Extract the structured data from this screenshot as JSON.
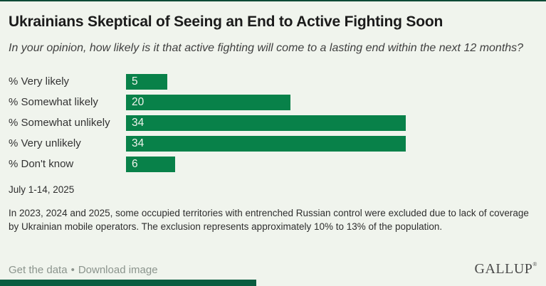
{
  "header": {
    "title": "Ukrainians Skeptical of Seeing an End to Active Fighting Soon",
    "subtitle": "In your opinion, how likely is it that active fighting will come to a lasting end within the next 12 months?"
  },
  "chart_data": {
    "type": "bar",
    "orientation": "horizontal",
    "title": "Ukrainians Skeptical of Seeing an End to Active Fighting Soon",
    "subtitle": "In your opinion, how likely is it that active fighting will come to a lasting end within the next 12 months?",
    "categories": [
      "% Very likely",
      "% Somewhat likely",
      "% Somewhat unlikely",
      "% Very unlikely",
      "% Don't know"
    ],
    "values": [
      5,
      20,
      34,
      34,
      6
    ],
    "xlabel": "",
    "ylabel": "",
    "xlim": [
      0,
      50
    ],
    "grid": false,
    "legend": false,
    "value_labels": "inside-left",
    "bar_color": "#088149",
    "value_label_color": "#f0f4ed"
  },
  "footer": {
    "date_range": "July 1-14, 2025",
    "footnote": "In 2023, 2024 and 2025, some occupied territories with entrenched Russian control were excluded due to lack of coverage by Ukrainian mobile operators. The exclusion represents approximately 10% to 13% of the population.",
    "links": [
      "Get the data",
      "Download image"
    ],
    "separator": "•",
    "brand": "GALLUP",
    "brand_mark": "®"
  },
  "colors": {
    "background": "#f0f4ed",
    "bar_green": "#088149",
    "top_accent_line": "#0d4a36",
    "bottom_accent_bar": "#0a5c40",
    "title_text": "#1b1b1b",
    "body_text": "#2e2e2e",
    "link_gray": "#8b948d"
  }
}
